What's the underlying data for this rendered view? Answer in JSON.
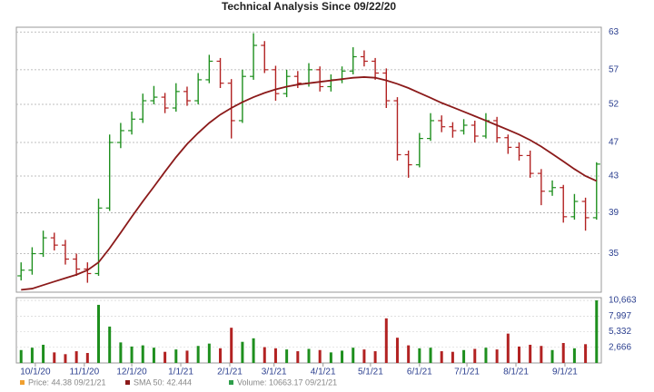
{
  "chart_data": {
    "type": "ohlc",
    "title": "Technical Analysis Since 09/22/20",
    "x": [
      "9/22/20",
      "9/29/20",
      "10/6/20",
      "10/13/20",
      "10/20/20",
      "10/27/20",
      "11/3/20",
      "11/10/20",
      "11/17/20",
      "11/24/20",
      "12/1/20",
      "12/8/20",
      "12/15/20",
      "12/22/20",
      "12/29/20",
      "1/5/21",
      "1/12/21",
      "1/19/21",
      "1/26/21",
      "2/2/21",
      "2/9/21",
      "2/16/21",
      "2/23/21",
      "3/2/21",
      "3/9/21",
      "3/16/21",
      "3/23/21",
      "3/30/21",
      "4/6/21",
      "4/13/21",
      "4/20/21",
      "4/27/21",
      "5/4/21",
      "5/11/21",
      "5/18/21",
      "5/25/21",
      "6/1/21",
      "6/8/21",
      "6/15/21",
      "6/22/21",
      "6/29/21",
      "7/6/21",
      "7/13/21",
      "7/20/21",
      "7/27/21",
      "8/3/21",
      "8/10/21",
      "8/17/21",
      "8/24/21",
      "8/31/21",
      "9/7/21",
      "9/14/21",
      "9/21/21"
    ],
    "xlim": [
      "9/19/20",
      "9/24/21"
    ],
    "xticks": [
      "10/1/20",
      "11/1/20",
      "12/1/20",
      "1/1/21",
      "2/1/21",
      "3/1/21",
      "4/1/21",
      "5/1/21",
      "6/1/21",
      "7/1/21",
      "8/1/21",
      "9/1/21"
    ],
    "ylim": [
      31.6,
      63.8
    ],
    "yticks": [
      63,
      57,
      52,
      47,
      43,
      39,
      35
    ],
    "log_scale": true,
    "grid": true,
    "price": {
      "name": "Price: 44.38 09/21/21",
      "color": "#f0a030",
      "up_color": "#1e8f1e",
      "down_color": "#b22222",
      "open": [
        33.0,
        33.5,
        35.0,
        36.5,
        35.8,
        34.5,
        33.6,
        33.2,
        39.5,
        47.0,
        48.5,
        50.0,
        52.5,
        53.0,
        51.5,
        53.8,
        52.5,
        55.5,
        58.3,
        55.0,
        49.8,
        56.0,
        60.8,
        57.0,
        53.5,
        56.0,
        55.0,
        57.0,
        54.5,
        55.5,
        56.8,
        59.0,
        58.3,
        56.5,
        52.5,
        45.5,
        44.3,
        47.5,
        49.8,
        49.0,
        48.5,
        49.2,
        47.8,
        49.8,
        47.6,
        46.4,
        45.4,
        43.3,
        41.3,
        41.7,
        38.6,
        40.2,
        38.5
      ],
      "high": [
        34.2,
        35.6,
        37.2,
        37.0,
        36.3,
        35.0,
        34.2,
        40.5,
        48.0,
        49.5,
        51.0,
        53.5,
        54.6,
        53.6,
        55.0,
        54.5,
        56.5,
        59.3,
        58.8,
        55.6,
        57.0,
        62.8,
        61.5,
        57.6,
        57.0,
        56.8,
        58.0,
        57.5,
        56.3,
        57.5,
        60.5,
        60.0,
        58.8,
        57.2,
        53.0,
        46.0,
        48.2,
        50.8,
        50.5,
        49.6,
        50.0,
        49.8,
        50.8,
        50.3,
        48.0,
        47.0,
        46.0,
        43.8,
        42.5,
        42.0,
        41.0,
        40.6,
        44.6
      ],
      "low": [
        32.6,
        33.1,
        34.7,
        35.3,
        34.0,
        33.0,
        32.4,
        33.0,
        39.2,
        46.3,
        48.0,
        49.5,
        52.0,
        50.8,
        51.0,
        51.8,
        52.0,
        55.0,
        54.3,
        47.5,
        49.5,
        55.5,
        56.5,
        52.5,
        53.0,
        54.3,
        54.5,
        53.8,
        53.8,
        55.0,
        56.3,
        57.5,
        55.5,
        51.5,
        44.8,
        42.8,
        44.0,
        47.2,
        48.3,
        47.6,
        48.0,
        47.0,
        47.5,
        47.0,
        45.6,
        44.8,
        42.8,
        39.8,
        40.8,
        38.0,
        38.3,
        37.2,
        38.3
      ],
      "close": [
        33.5,
        35.0,
        36.5,
        35.8,
        34.5,
        33.6,
        33.2,
        39.5,
        47.0,
        48.5,
        50.0,
        52.5,
        53.0,
        51.5,
        53.8,
        52.5,
        55.5,
        58.3,
        55.0,
        49.8,
        56.0,
        60.8,
        57.0,
        53.5,
        56.0,
        55.0,
        57.0,
        54.5,
        55.5,
        56.8,
        59.0,
        58.3,
        56.5,
        52.5,
        45.5,
        44.3,
        47.5,
        49.8,
        49.0,
        48.5,
        49.2,
        47.8,
        49.8,
        47.6,
        46.4,
        45.4,
        43.3,
        41.3,
        41.7,
        38.6,
        40.2,
        38.5,
        44.38
      ]
    },
    "sma": {
      "name": "SMA 50: 42.444",
      "color": "#8b1a1a",
      "values": [
        31.8,
        31.9,
        32.2,
        32.5,
        32.8,
        33.1,
        33.5,
        34.2,
        35.5,
        37.0,
        38.6,
        40.2,
        41.8,
        43.5,
        45.2,
        46.8,
        48.2,
        49.5,
        50.6,
        51.5,
        52.3,
        53.0,
        53.6,
        54.1,
        54.5,
        54.8,
        55.0,
        55.2,
        55.4,
        55.6,
        55.8,
        55.9,
        55.8,
        55.4,
        54.9,
        54.3,
        53.6,
        52.9,
        52.2,
        51.6,
        51.0,
        50.4,
        49.8,
        49.2,
        48.6,
        48.0,
        47.3,
        46.5,
        45.6,
        44.7,
        43.8,
        43.0,
        42.444
      ]
    },
    "volume": {
      "name": "Volume: 10663.17 09/21/21",
      "color": "#2e9e4a",
      "ylim": [
        0,
        11130
      ],
      "yticks": [
        {
          "value": 10663,
          "label": "10,663"
        },
        {
          "value": 7997,
          "label": "7,997"
        },
        {
          "value": 5332,
          "label": "5,332"
        },
        {
          "value": 2666,
          "label": "2,666"
        }
      ],
      "values": [
        2200,
        2600,
        3100,
        1800,
        1500,
        2000,
        1700,
        9900,
        6200,
        3500,
        2800,
        3000,
        2600,
        1900,
        2300,
        2100,
        2900,
        3300,
        2500,
        6000,
        3600,
        4200,
        2700,
        2500,
        2300,
        2000,
        2400,
        2200,
        1800,
        2100,
        2600,
        2300,
        2000,
        7600,
        4300,
        3000,
        2500,
        2600,
        2000,
        1900,
        2200,
        2400,
        2600,
        2300,
        5000,
        2800,
        3100,
        2900,
        2200,
        3400,
        2500,
        3200,
        10663.17
      ]
    }
  }
}
